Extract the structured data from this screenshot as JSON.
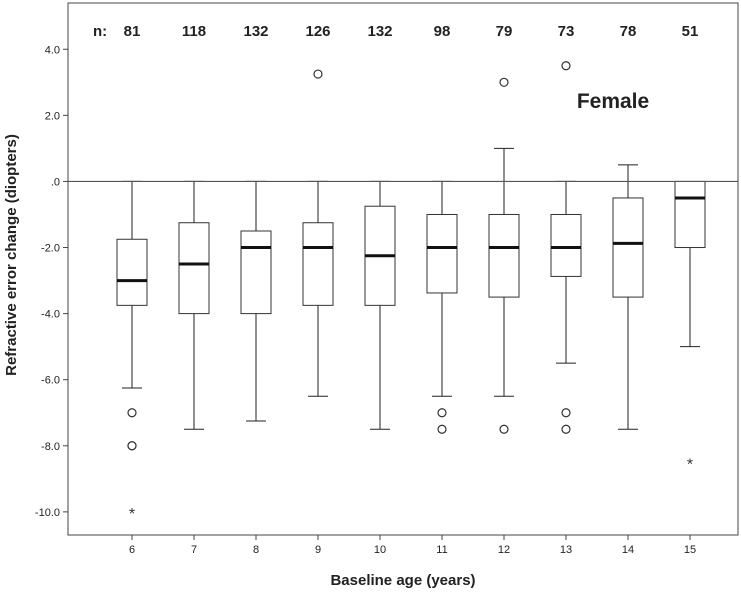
{
  "chart_data": {
    "type": "box",
    "title": "",
    "annotation": "Female",
    "xlabel": "Baseline age (years)",
    "ylabel": "Refractive error change (diopters)",
    "ylim": [
      -10.7,
      5.4
    ],
    "reference_line": 0,
    "grid": false,
    "y_ticks": [
      4,
      2,
      0,
      -2,
      -4,
      -6,
      -8,
      -10
    ],
    "y_tick_labels": [
      "4.0",
      "2.0",
      ".0",
      "-2.0",
      "-4.0",
      "-6.0",
      "-8.0",
      "-10.0"
    ],
    "categories": [
      "6",
      "7",
      "8",
      "9",
      "10",
      "11",
      "12",
      "13",
      "14",
      "15"
    ],
    "n_prefix": "n:",
    "n_values": [
      "81",
      "118",
      "132",
      "126",
      "132",
      "98",
      "79",
      "73",
      "78",
      "51"
    ],
    "boxes": [
      {
        "category": "6",
        "whisker_low": -6.25,
        "q1": -3.75,
        "median": -3.0,
        "q3": -1.75,
        "whisker_high": 0.0,
        "outliers": [
          -7.0,
          -8.0,
          -8.0
        ],
        "extremes": [
          -10.0
        ]
      },
      {
        "category": "7",
        "whisker_low": -7.5,
        "q1": -4.0,
        "median": -2.5,
        "q3": -1.25,
        "whisker_high": 0.0,
        "outliers": [],
        "extremes": []
      },
      {
        "category": "8",
        "whisker_low": -7.25,
        "q1": -4.0,
        "median": -2.0,
        "q3": -1.5,
        "whisker_high": 0.0,
        "outliers": [],
        "extremes": []
      },
      {
        "category": "9",
        "whisker_low": -6.5,
        "q1": -3.75,
        "median": -2.0,
        "q3": -1.25,
        "whisker_high": 0.0,
        "outliers": [
          3.25
        ],
        "extremes": []
      },
      {
        "category": "10",
        "whisker_low": -7.5,
        "q1": -3.75,
        "median": -2.25,
        "q3": -0.75,
        "whisker_high": 0.0,
        "outliers": [],
        "extremes": []
      },
      {
        "category": "11",
        "whisker_low": -6.5,
        "q1": -3.375,
        "median": -2.0,
        "q3": -1.0,
        "whisker_high": 0.0,
        "outliers": [
          -7.0,
          -7.5
        ],
        "extremes": []
      },
      {
        "category": "12",
        "whisker_low": -6.5,
        "q1": -3.5,
        "median": -2.0,
        "q3": -1.0,
        "whisker_high": 1.0,
        "outliers": [
          3.0,
          -7.5
        ],
        "extremes": []
      },
      {
        "category": "13",
        "whisker_low": -5.5,
        "q1": -2.875,
        "median": -2.0,
        "q3": -1.0,
        "whisker_high": 0.0,
        "outliers": [
          3.5,
          -7.0,
          -7.5
        ],
        "extremes": []
      },
      {
        "category": "14",
        "whisker_low": -7.5,
        "q1": -3.5,
        "median": -1.875,
        "q3": -0.5,
        "whisker_high": 0.5,
        "outliers": [],
        "extremes": []
      },
      {
        "category": "15",
        "whisker_low": -5.0,
        "q1": -2.0,
        "median": -0.5,
        "q3": 0.0,
        "whisker_high": 0.0,
        "outliers": [],
        "extremes": [
          -8.5
        ]
      }
    ]
  }
}
